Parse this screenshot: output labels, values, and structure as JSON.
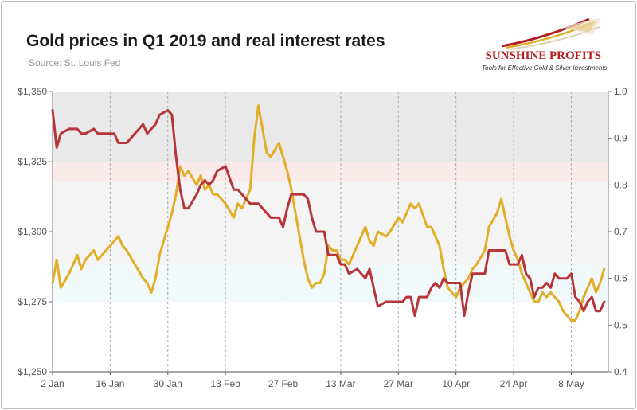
{
  "header": {
    "title": "Gold prices in Q1 2019 and real interest rates",
    "source": "Source: St. Louis Fed"
  },
  "logo": {
    "name": "SUNSHINE PROFITS",
    "tagline": "Tools for Effective Gold & Silver Investments"
  },
  "chart_data": {
    "type": "line",
    "title": "Gold prices in Q1 2019 and real interest rates",
    "x_tick_labels": [
      "2 Jan",
      "16 Jan",
      "30 Jan",
      "13 Feb",
      "27 Feb",
      "13 Mar",
      "27 Mar",
      "10 Apr",
      "24 Apr",
      "8 May"
    ],
    "x_tick_days": [
      0,
      14,
      28,
      42,
      56,
      70,
      84,
      98,
      112,
      126
    ],
    "xlim": [
      0,
      135
    ],
    "y_left": {
      "min": 1250,
      "max": 1350,
      "ticks": [
        1350,
        1325,
        1300,
        1275,
        1250
      ],
      "labels": [
        "$1,350",
        "$1,325",
        "$1,300",
        "$1,275",
        "$1,250"
      ]
    },
    "y_right": {
      "min": 0.4,
      "max": 1.0,
      "ticks": [
        1.0,
        0.9,
        0.8,
        0.7,
        0.6,
        0.5,
        0.4
      ],
      "labels": [
        "1.0",
        "0.9",
        "0.8",
        "0.7",
        "0.6",
        "0.5",
        "0.4"
      ]
    },
    "bands": [
      {
        "from": 1325,
        "to": 1350,
        "axis": "left",
        "color": "#e9e9e9"
      },
      {
        "from": 1318,
        "to": 1325,
        "axis": "left",
        "color": "#fbeaea"
      },
      {
        "from": 1288,
        "to": 1318,
        "axis": "left",
        "color": "#f4f4f4"
      },
      {
        "from": 1275,
        "to": 1288,
        "axis": "left",
        "color": "#f1f9fb"
      }
    ],
    "series": [
      {
        "name": "Gold price",
        "axis": "right",
        "color": "#e3ae27",
        "x": [
          0,
          1,
          2,
          4,
          5,
          6,
          7,
          8,
          10,
          11,
          14,
          15,
          16,
          17,
          18,
          22,
          23,
          24,
          25,
          26,
          28,
          29,
          30,
          31,
          32,
          33,
          35,
          36,
          37,
          38,
          39,
          40,
          42,
          44,
          45,
          46,
          48,
          49,
          50,
          51,
          52,
          53,
          55,
          56,
          57,
          58,
          59,
          61,
          62,
          63,
          64,
          65,
          66,
          67,
          68,
          69,
          70,
          71,
          72,
          74,
          76,
          77,
          78,
          79,
          81,
          82,
          84,
          85,
          86,
          87,
          88,
          89,
          91,
          92,
          93,
          94,
          95,
          96,
          98,
          99,
          100,
          101,
          102,
          103,
          105,
          106,
          108,
          109,
          110,
          111,
          112,
          113,
          114,
          115,
          116,
          117,
          118,
          119,
          120,
          121,
          122,
          123,
          124,
          125,
          126,
          127,
          128,
          129,
          130,
          131,
          132,
          133,
          134
        ],
        "values": [
          0.59,
          0.64,
          0.58,
          0.61,
          0.63,
          0.65,
          0.62,
          0.64,
          0.66,
          0.64,
          0.67,
          0.68,
          0.69,
          0.67,
          0.66,
          0.6,
          0.59,
          0.57,
          0.6,
          0.65,
          0.71,
          0.74,
          0.78,
          0.84,
          0.82,
          0.83,
          0.8,
          0.82,
          0.79,
          0.8,
          0.78,
          0.78,
          0.76,
          0.73,
          0.76,
          0.75,
          0.79,
          0.9,
          0.97,
          0.92,
          0.87,
          0.86,
          0.89,
          0.86,
          0.83,
          0.79,
          0.74,
          0.64,
          0.6,
          0.58,
          0.59,
          0.59,
          0.61,
          0.67,
          0.66,
          0.66,
          0.64,
          0.64,
          0.63,
          0.67,
          0.71,
          0.68,
          0.67,
          0.7,
          0.69,
          0.7,
          0.73,
          0.72,
          0.74,
          0.76,
          0.75,
          0.76,
          0.71,
          0.71,
          0.69,
          0.67,
          0.62,
          0.58,
          0.56,
          0.58,
          0.59,
          0.6,
          0.62,
          0.63,
          0.66,
          0.71,
          0.74,
          0.77,
          0.73,
          0.69,
          0.66,
          0.64,
          0.61,
          0.59,
          0.57,
          0.55,
          0.55,
          0.57,
          0.56,
          0.57,
          0.56,
          0.55,
          0.53,
          0.52,
          0.51,
          0.51,
          0.53,
          0.56,
          0.58,
          0.6,
          0.57,
          0.59,
          0.62
        ]
      },
      {
        "name": "Real interest rates",
        "axis": "right",
        "color": "#b73439",
        "x": [
          0,
          1,
          2,
          4,
          5,
          6,
          7,
          8,
          10,
          11,
          14,
          15,
          16,
          17,
          18,
          22,
          23,
          24,
          25,
          26,
          28,
          29,
          30,
          31,
          32,
          33,
          35,
          36,
          37,
          38,
          39,
          40,
          42,
          44,
          45,
          46,
          48,
          49,
          50,
          51,
          52,
          53,
          55,
          56,
          57,
          58,
          59,
          61,
          62,
          63,
          64,
          65,
          66,
          67,
          68,
          69,
          70,
          71,
          72,
          74,
          76,
          77,
          78,
          79,
          81,
          82,
          84,
          85,
          86,
          87,
          88,
          89,
          91,
          92,
          93,
          94,
          95,
          96,
          98,
          99,
          100,
          101,
          102,
          103,
          105,
          106,
          108,
          109,
          110,
          111,
          112,
          113,
          114,
          115,
          116,
          117,
          118,
          119,
          120,
          121,
          122,
          123,
          124,
          125,
          126,
          127,
          128,
          129,
          130,
          131,
          132,
          133,
          134
        ],
        "values": [
          0.96,
          0.88,
          0.91,
          0.92,
          0.92,
          0.92,
          0.91,
          0.91,
          0.92,
          0.91,
          0.91,
          0.91,
          0.89,
          0.89,
          0.89,
          0.93,
          0.91,
          0.92,
          0.93,
          0.95,
          0.96,
          0.95,
          0.86,
          0.79,
          0.75,
          0.75,
          0.78,
          0.8,
          0.81,
          0.8,
          0.81,
          0.83,
          0.84,
          0.79,
          0.79,
          0.78,
          0.76,
          0.76,
          0.76,
          0.75,
          0.74,
          0.73,
          0.73,
          0.71,
          0.75,
          0.78,
          0.78,
          0.78,
          0.77,
          0.73,
          0.7,
          0.7,
          0.7,
          0.65,
          0.65,
          0.65,
          0.63,
          0.63,
          0.61,
          0.62,
          0.6,
          0.62,
          0.58,
          0.54,
          0.55,
          0.55,
          0.55,
          0.55,
          0.56,
          0.56,
          0.52,
          0.56,
          0.56,
          0.58,
          0.59,
          0.58,
          0.6,
          0.59,
          0.59,
          0.59,
          0.52,
          0.57,
          0.61,
          0.61,
          0.61,
          0.66,
          0.66,
          0.66,
          0.66,
          0.63,
          0.63,
          0.63,
          0.65,
          0.61,
          0.6,
          0.56,
          0.58,
          0.58,
          0.59,
          0.58,
          0.61,
          0.6,
          0.6,
          0.6,
          0.61,
          0.56,
          0.55,
          0.53,
          0.55,
          0.56,
          0.53,
          0.53,
          0.55
        ]
      }
    ]
  }
}
